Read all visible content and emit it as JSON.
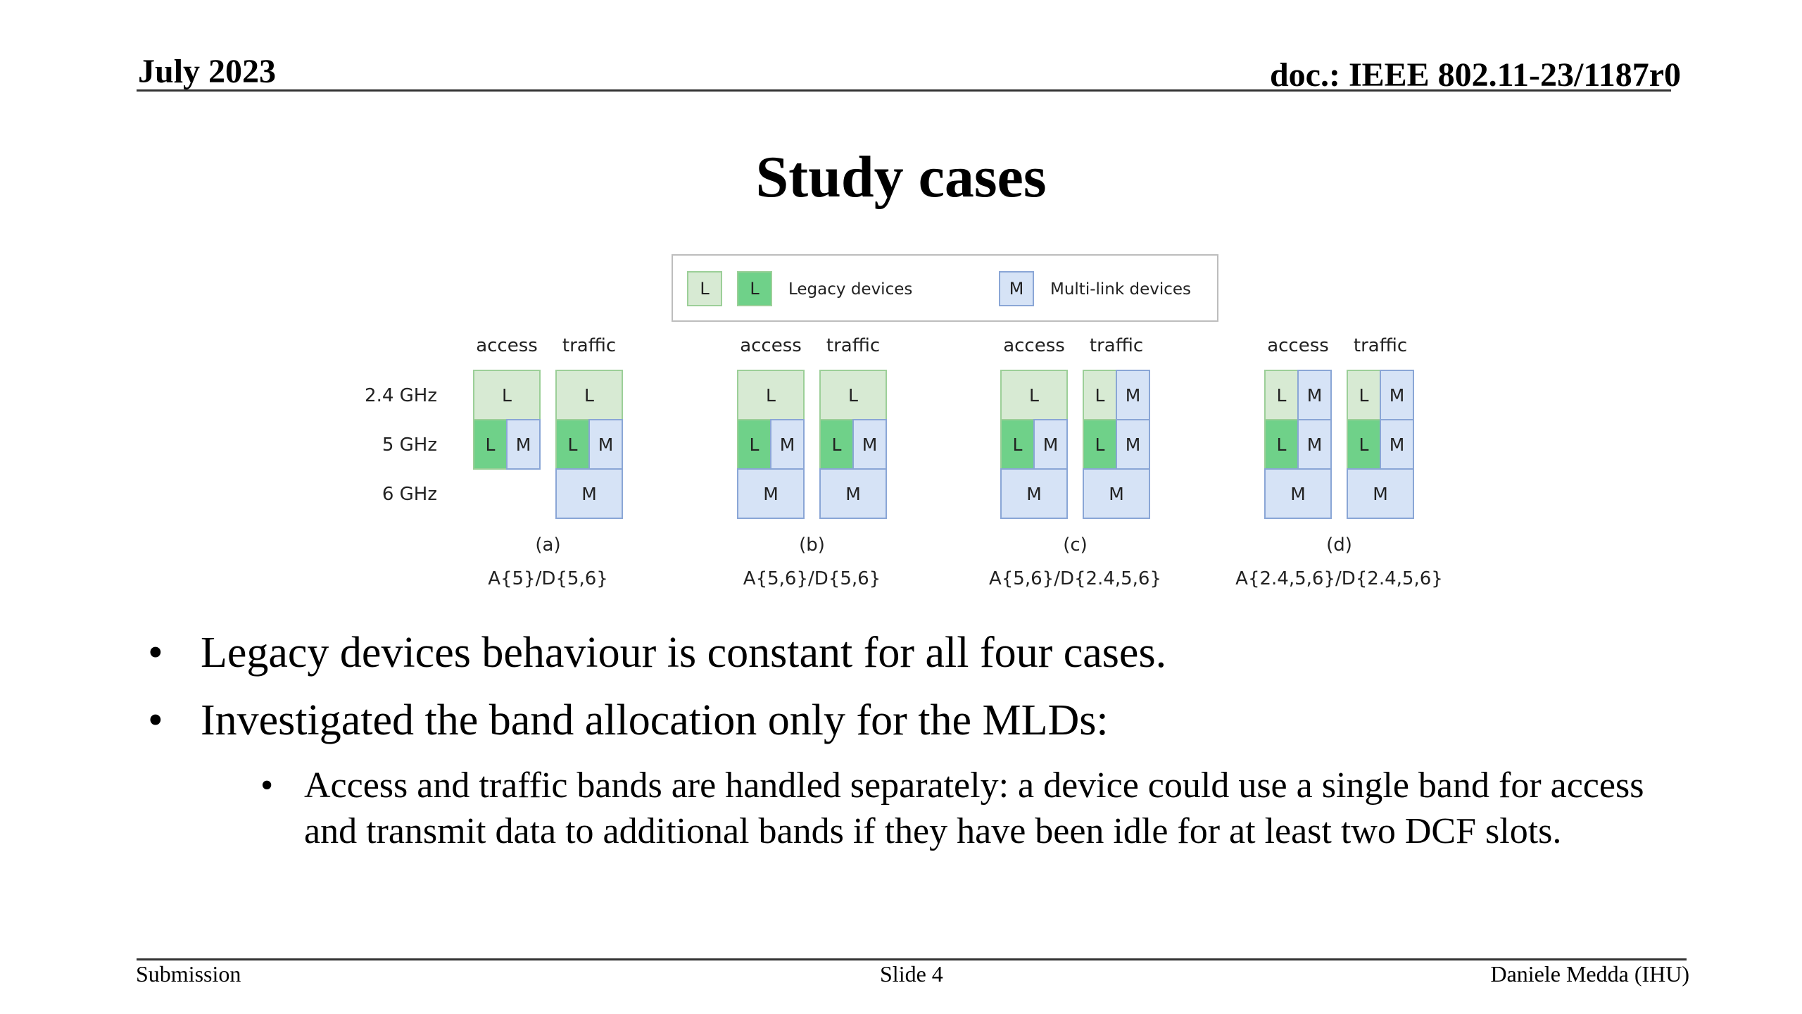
{
  "header": {
    "date": "July 2023",
    "doc": "doc.: IEEE 802.11-23/1187r0"
  },
  "title": "Study cases",
  "figure": {
    "legend": {
      "legacy_icon_letter": "L",
      "legacy_label": "Legacy devices",
      "multilink_icon_letter": "M",
      "multilink_label": "Multi-link devices"
    },
    "band_labels": [
      "2.4 GHz",
      "5 GHz",
      "6 GHz"
    ],
    "column_labels": [
      "access",
      "traffic"
    ],
    "colors": {
      "legacy_light": "#d7ead3",
      "legacy_green": "#6fd189",
      "multilink_blue": "#d6e3f6",
      "legacy_border": "#9ccf98",
      "multilink_border": "#8aa6d6"
    },
    "cases": [
      {
        "tag": "(a)",
        "label": "A{5}/D{5,6}",
        "access": [
          [
            "L-light"
          ],
          [
            "L-green",
            "M"
          ],
          []
        ],
        "traffic": [
          [
            "L-light"
          ],
          [
            "L-green",
            "M"
          ],
          [
            "M"
          ]
        ]
      },
      {
        "tag": "(b)",
        "label": "A{5,6}/D{5,6}",
        "access": [
          [
            "L-light"
          ],
          [
            "L-green",
            "M"
          ],
          [
            "M"
          ]
        ],
        "traffic": [
          [
            "L-light"
          ],
          [
            "L-green",
            "M"
          ],
          [
            "M"
          ]
        ]
      },
      {
        "tag": "(c)",
        "label": "A{5,6}/D{2.4,5,6}",
        "access": [
          [
            "L-light"
          ],
          [
            "L-green",
            "M"
          ],
          [
            "M"
          ]
        ],
        "traffic": [
          [
            "L-light",
            "M"
          ],
          [
            "L-green",
            "M"
          ],
          [
            "M"
          ]
        ]
      },
      {
        "tag": "(d)",
        "label": "A{2.4,5,6}/D{2.4,5,6}",
        "access": [
          [
            "L-light",
            "M"
          ],
          [
            "L-green",
            "M"
          ],
          [
            "M"
          ]
        ],
        "traffic": [
          [
            "L-light",
            "M"
          ],
          [
            "L-green",
            "M"
          ],
          [
            "M"
          ]
        ]
      }
    ]
  },
  "bullets": [
    "Legacy devices behaviour is constant for all four cases.",
    "Investigated the band allocation only for the MLDs:"
  ],
  "sub_bullet": "Access and traffic bands are handled separately: a device could use a single band for access and transmit data to additional bands if they have been idle for at least two DCF slots.",
  "footer": {
    "left": "Submission",
    "center": "Slide 4",
    "right": "Daniele Medda (IHU)"
  }
}
